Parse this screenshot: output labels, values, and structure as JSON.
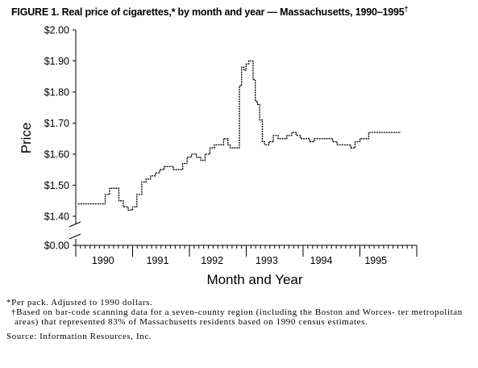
{
  "figure": {
    "title": "FIGURE 1. Real price of cigarettes,* by month and year — Massachusetts, 1990–1995",
    "title_mark": "†"
  },
  "footnotes": {
    "note1": "*Per pack. Adjusted to 1990 dollars.",
    "note2": "†Based on bar-code scanning data for a seven-county region (including the Boston and Worces- ter metropolitan areas) that represented 83% of Massachusetts residents based on 1990 census estimates.",
    "source": "Source: Information Resources, Inc."
  },
  "chart_data": {
    "type": "line",
    "title": "FIGURE 1. Real price of cigarettes,* by month and year — Massachusetts, 1990–1995†",
    "xlabel": "Month and Year",
    "ylabel": "Price",
    "x_ticks": [
      "1990",
      "1991",
      "1992",
      "1993",
      "1994",
      "1995"
    ],
    "y_ticks": [
      "$2.00",
      "$1.90",
      "$1.80",
      "$1.70",
      "$1.60",
      "$1.50",
      "$1.40",
      "$0.00"
    ],
    "ylim": [
      1.35,
      2.0
    ],
    "axis_break": "between $0.00 and $1.40",
    "grid": false,
    "line_style": "step",
    "line_color": "#000000",
    "series": [
      {
        "x": [
          1989.54,
          1989.67,
          1989.79,
          1989.92,
          1990.04,
          1990.12,
          1990.21,
          1990.29,
          1990.37,
          1990.46,
          1990.54,
          1990.62,
          1990.71,
          1990.79,
          1990.87,
          1990.96,
          1991.04,
          1991.12,
          1991.21,
          1991.29,
          1991.37,
          1991.46,
          1991.54,
          1991.62,
          1991.71,
          1991.79,
          1991.87,
          1991.96,
          1992.04,
          1992.12,
          1992.21,
          1992.29,
          1992.33,
          1992.37,
          1992.42,
          1992.46,
          1992.5,
          1992.54,
          1992.58,
          1992.62,
          1992.67,
          1992.71,
          1992.75,
          1992.79,
          1992.83,
          1992.87,
          1992.92,
          1992.96,
          1993.04,
          1993.12,
          1993.21,
          1993.29,
          1993.37,
          1993.46,
          1993.54,
          1993.62,
          1993.71,
          1993.79,
          1993.87,
          1993.96,
          1994.04,
          1994.12,
          1994.21,
          1994.29,
          1994.37,
          1994.46,
          1994.54,
          1994.62,
          1994.71,
          1994.79,
          1994.87,
          1994.96,
          1995.04,
          1995.12,
          1995.21,
          1995.29,
          1995.37,
          1995.46
        ],
        "y": [
          1.44,
          1.44,
          1.44,
          1.44,
          1.47,
          1.49,
          1.49,
          1.45,
          1.43,
          1.42,
          1.43,
          1.47,
          1.51,
          1.52,
          1.53,
          1.54,
          1.55,
          1.56,
          1.56,
          1.55,
          1.55,
          1.57,
          1.59,
          1.6,
          1.59,
          1.58,
          1.6,
          1.62,
          1.63,
          1.63,
          1.65,
          1.63,
          1.62,
          1.62,
          1.62,
          1.62,
          1.82,
          1.88,
          1.87,
          1.89,
          1.9,
          1.9,
          1.84,
          1.77,
          1.76,
          1.71,
          1.64,
          1.63,
          1.64,
          1.66,
          1.65,
          1.65,
          1.66,
          1.67,
          1.66,
          1.65,
          1.65,
          1.64,
          1.65,
          1.65,
          1.65,
          1.65,
          1.64,
          1.63,
          1.63,
          1.63,
          1.62,
          1.64,
          1.65,
          1.65,
          1.67,
          1.67,
          1.67,
          1.67,
          1.67,
          1.67,
          1.67,
          1.67
        ]
      }
    ]
  }
}
